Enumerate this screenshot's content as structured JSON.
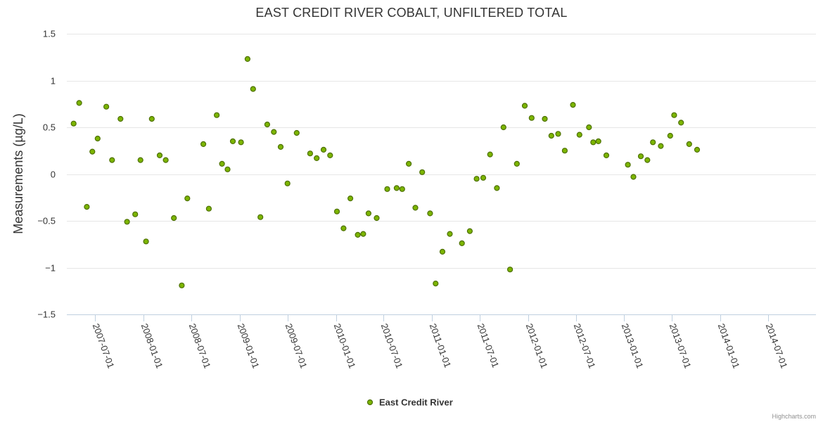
{
  "chart_data": {
    "type": "scatter",
    "title": "EAST CREDIT RIVER COBALT, UNFILTERED TOTAL",
    "ylabel": "Measurements (µg/L)",
    "xlabel": "",
    "ylim": [
      -1.5,
      1.5
    ],
    "yticks": [
      1.5,
      1,
      0.5,
      0,
      -0.5,
      -1,
      -1.5
    ],
    "ytick_labels": [
      "1.5",
      "1",
      "0.5",
      "0",
      "−0.5",
      "−1",
      "−1.5"
    ],
    "xlim": [
      "2007-03-15",
      "2014-12-31"
    ],
    "xticks": [
      "2007-07-01",
      "2008-01-01",
      "2008-07-01",
      "2009-01-01",
      "2009-07-01",
      "2010-01-01",
      "2010-07-01",
      "2011-01-01",
      "2011-07-01",
      "2012-01-01",
      "2012-07-01",
      "2013-01-01",
      "2013-07-01",
      "2014-01-01",
      "2014-07-01"
    ],
    "grid": true,
    "legend_position": "bottom-center",
    "series": [
      {
        "name": "East Credit River",
        "color": "#7cb500",
        "points": [
          {
            "x": "2007-04-10",
            "y": 0.54
          },
          {
            "x": "2007-05-01",
            "y": 0.76
          },
          {
            "x": "2007-05-30",
            "y": -0.35
          },
          {
            "x": "2007-06-20",
            "y": 0.24
          },
          {
            "x": "2007-07-10",
            "y": 0.38
          },
          {
            "x": "2007-08-12",
            "y": 0.72
          },
          {
            "x": "2007-09-03",
            "y": 0.15
          },
          {
            "x": "2007-10-05",
            "y": 0.59
          },
          {
            "x": "2007-10-30",
            "y": -0.51
          },
          {
            "x": "2007-11-30",
            "y": -0.43
          },
          {
            "x": "2007-12-20",
            "y": 0.15
          },
          {
            "x": "2008-01-10",
            "y": -0.72
          },
          {
            "x": "2008-02-01",
            "y": 0.59
          },
          {
            "x": "2008-03-02",
            "y": 0.2
          },
          {
            "x": "2008-03-25",
            "y": 0.15
          },
          {
            "x": "2008-04-25",
            "y": -0.47
          },
          {
            "x": "2008-05-25",
            "y": -1.19
          },
          {
            "x": "2008-06-15",
            "y": -0.26
          },
          {
            "x": "2008-08-15",
            "y": 0.32
          },
          {
            "x": "2008-09-05",
            "y": -0.37
          },
          {
            "x": "2008-10-05",
            "y": 0.63
          },
          {
            "x": "2008-10-25",
            "y": 0.11
          },
          {
            "x": "2008-11-15",
            "y": 0.05
          },
          {
            "x": "2008-12-05",
            "y": 0.35
          },
          {
            "x": "2009-01-05",
            "y": 0.34
          },
          {
            "x": "2009-01-30",
            "y": 1.23
          },
          {
            "x": "2009-02-20",
            "y": 0.91
          },
          {
            "x": "2009-03-20",
            "y": -0.46
          },
          {
            "x": "2009-04-15",
            "y": 0.53
          },
          {
            "x": "2009-05-10",
            "y": 0.45
          },
          {
            "x": "2009-06-05",
            "y": 0.29
          },
          {
            "x": "2009-07-01",
            "y": -0.1
          },
          {
            "x": "2009-08-05",
            "y": 0.44
          },
          {
            "x": "2009-09-25",
            "y": 0.22
          },
          {
            "x": "2009-10-20",
            "y": 0.17
          },
          {
            "x": "2009-11-15",
            "y": 0.26
          },
          {
            "x": "2009-12-10",
            "y": 0.2
          },
          {
            "x": "2010-01-05",
            "y": -0.4
          },
          {
            "x": "2010-01-30",
            "y": -0.58
          },
          {
            "x": "2010-02-25",
            "y": -0.26
          },
          {
            "x": "2010-03-25",
            "y": -0.65
          },
          {
            "x": "2010-04-15",
            "y": -0.64
          },
          {
            "x": "2010-05-05",
            "y": -0.42
          },
          {
            "x": "2010-06-05",
            "y": -0.47
          },
          {
            "x": "2010-07-15",
            "y": -0.16
          },
          {
            "x": "2010-08-20",
            "y": -0.15
          },
          {
            "x": "2010-09-10",
            "y": -0.16
          },
          {
            "x": "2010-10-05",
            "y": 0.11
          },
          {
            "x": "2010-10-30",
            "y": -0.36
          },
          {
            "x": "2010-11-25",
            "y": 0.02
          },
          {
            "x": "2010-12-25",
            "y": -0.42
          },
          {
            "x": "2011-01-15",
            "y": -1.17
          },
          {
            "x": "2011-02-10",
            "y": -0.83
          },
          {
            "x": "2011-03-10",
            "y": -0.64
          },
          {
            "x": "2011-04-25",
            "y": -0.74
          },
          {
            "x": "2011-05-25",
            "y": -0.61
          },
          {
            "x": "2011-06-20",
            "y": -0.05
          },
          {
            "x": "2011-07-15",
            "y": -0.04
          },
          {
            "x": "2011-08-10",
            "y": 0.21
          },
          {
            "x": "2011-09-05",
            "y": -0.15
          },
          {
            "x": "2011-09-30",
            "y": 0.5
          },
          {
            "x": "2011-10-25",
            "y": -1.02
          },
          {
            "x": "2011-11-20",
            "y": 0.11
          },
          {
            "x": "2011-12-20",
            "y": 0.73
          },
          {
            "x": "2012-01-15",
            "y": 0.6
          },
          {
            "x": "2012-03-05",
            "y": 0.59
          },
          {
            "x": "2012-03-30",
            "y": 0.41
          },
          {
            "x": "2012-04-25",
            "y": 0.43
          },
          {
            "x": "2012-05-20",
            "y": 0.25
          },
          {
            "x": "2012-06-20",
            "y": 0.74
          },
          {
            "x": "2012-07-15",
            "y": 0.42
          },
          {
            "x": "2012-08-20",
            "y": 0.5
          },
          {
            "x": "2012-09-05",
            "y": 0.34
          },
          {
            "x": "2012-09-25",
            "y": 0.35
          },
          {
            "x": "2012-10-25",
            "y": 0.2
          },
          {
            "x": "2013-01-15",
            "y": 0.1
          },
          {
            "x": "2013-02-05",
            "y": -0.03
          },
          {
            "x": "2013-03-05",
            "y": 0.19
          },
          {
            "x": "2013-03-30",
            "y": 0.15
          },
          {
            "x": "2013-04-20",
            "y": 0.34
          },
          {
            "x": "2013-05-20",
            "y": 0.3
          },
          {
            "x": "2013-06-25",
            "y": 0.41
          },
          {
            "x": "2013-07-10",
            "y": 0.63
          },
          {
            "x": "2013-08-05",
            "y": 0.55
          },
          {
            "x": "2013-09-05",
            "y": 0.32
          },
          {
            "x": "2013-10-05",
            "y": 0.26
          }
        ]
      }
    ]
  },
  "legend": {
    "label": "East Credit River"
  },
  "credits": {
    "text": "Highcharts.com"
  }
}
